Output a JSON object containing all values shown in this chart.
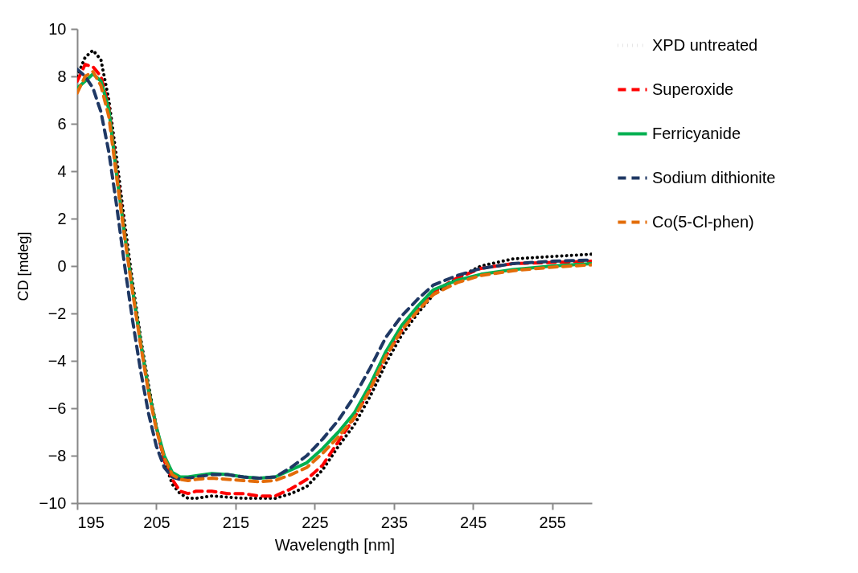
{
  "chart_data": {
    "type": "line",
    "xlabel": "Wavelength [nm]",
    "ylabel": "CD [mdeg]",
    "x": [
      195,
      196,
      197,
      198,
      199,
      200,
      201,
      202,
      203,
      204,
      205,
      206,
      207,
      208,
      209,
      210,
      212,
      214,
      216,
      218,
      220,
      222,
      224,
      226,
      228,
      230,
      232,
      234,
      236,
      238,
      240,
      243,
      246,
      250,
      255,
      260
    ],
    "xlim": [
      195,
      260
    ],
    "xticks": [
      195,
      205,
      215,
      225,
      235,
      245,
      255
    ],
    "ylim": [
      -10,
      10
    ],
    "yticks": [
      -10,
      -8,
      -6,
      -4,
      -2,
      0,
      2,
      4,
      6,
      8,
      10
    ],
    "grid": false,
    "legend": "right",
    "series": [
      {
        "name": "XPD untreated",
        "color": "#000000",
        "line_style": "dotted",
        "values": [
          8.0,
          8.8,
          9.1,
          8.7,
          7.0,
          4.5,
          1.8,
          -0.7,
          -3.0,
          -5.0,
          -6.8,
          -8.2,
          -9.2,
          -9.6,
          -9.8,
          -9.8,
          -9.7,
          -9.75,
          -9.8,
          -9.8,
          -9.8,
          -9.6,
          -9.3,
          -8.6,
          -7.6,
          -6.7,
          -5.5,
          -4.1,
          -2.9,
          -2.0,
          -1.2,
          -0.5,
          0,
          0.3,
          0.4,
          0.5
        ]
      },
      {
        "name": "Superoxide",
        "color": "#ff0000",
        "line_style": "dashed",
        "values": [
          7.8,
          8.5,
          8.4,
          8.0,
          6.7,
          4.0,
          1.4,
          -1.0,
          -3.2,
          -5.2,
          -6.8,
          -8.2,
          -9.0,
          -9.5,
          -9.6,
          -9.5,
          -9.5,
          -9.6,
          -9.6,
          -9.7,
          -9.7,
          -9.4,
          -9.0,
          -8.4,
          -7.4,
          -6.4,
          -5.2,
          -3.8,
          -2.7,
          -1.8,
          -1.1,
          -0.5,
          -0.1,
          0.1,
          0.15,
          0.2
        ]
      },
      {
        "name": "Ferricyanide",
        "color": "#00b050",
        "line_style": "solid",
        "values": [
          7.5,
          7.8,
          8.1,
          7.8,
          6.6,
          3.8,
          1.3,
          -1.0,
          -3.2,
          -5.2,
          -6.8,
          -8.0,
          -8.7,
          -8.9,
          -8.9,
          -8.85,
          -8.75,
          -8.8,
          -8.9,
          -8.95,
          -8.9,
          -8.6,
          -8.3,
          -7.7,
          -7.0,
          -6.2,
          -5.0,
          -3.6,
          -2.5,
          -1.7,
          -1.0,
          -0.6,
          -0.35,
          -0.15,
          0,
          0.1
        ]
      },
      {
        "name": "Sodium dithionite",
        "color": "#1f3864",
        "line_style": "dashed",
        "values": [
          8.3,
          8.0,
          7.5,
          6.5,
          4.8,
          2.5,
          0.0,
          -2.3,
          -4.4,
          -6.2,
          -7.6,
          -8.5,
          -8.9,
          -9.0,
          -8.95,
          -8.9,
          -8.8,
          -8.8,
          -8.9,
          -8.95,
          -8.9,
          -8.5,
          -8.0,
          -7.3,
          -6.5,
          -5.5,
          -4.3,
          -3.0,
          -2.1,
          -1.4,
          -0.8,
          -0.4,
          -0.1,
          0.1,
          0.2,
          0.25
        ]
      },
      {
        "name": "Co(5-Cl-phen)",
        "color": "#e36c09",
        "line_style": "dashed",
        "values": [
          7.3,
          8.0,
          8.2,
          7.6,
          6.3,
          3.7,
          1.2,
          -1.1,
          -3.3,
          -5.3,
          -6.9,
          -8.1,
          -8.8,
          -9.0,
          -9.05,
          -9.0,
          -8.95,
          -9.0,
          -9.05,
          -9.1,
          -9.05,
          -8.8,
          -8.5,
          -7.9,
          -7.2,
          -6.4,
          -5.2,
          -3.8,
          -2.7,
          -1.9,
          -1.2,
          -0.7,
          -0.4,
          -0.2,
          -0.05,
          0.05
        ]
      }
    ]
  }
}
